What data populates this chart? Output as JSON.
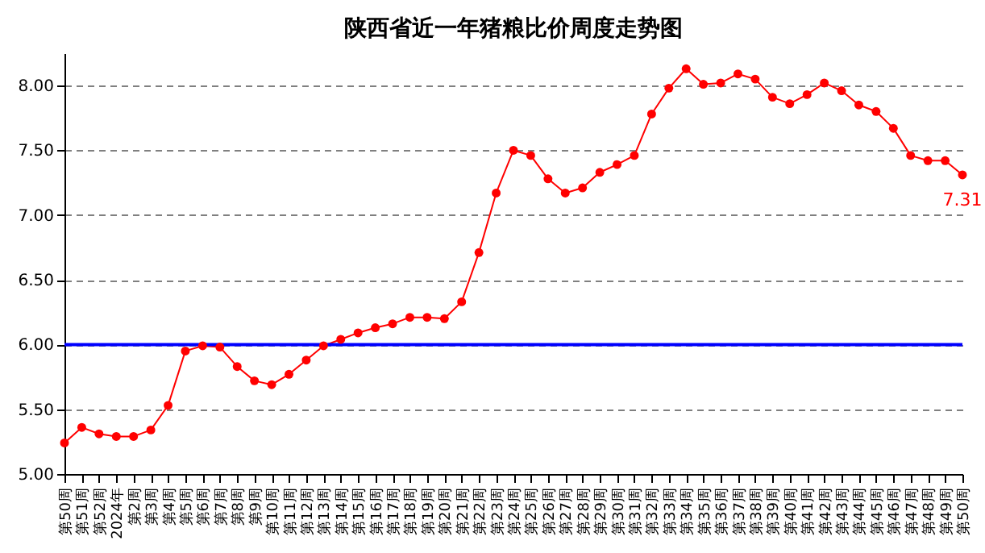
{
  "chart_data": {
    "type": "line",
    "title": "陕西省近一年猪粮比价周度走势图",
    "categories": [
      "第50周",
      "第51周",
      "第52周",
      "2024年",
      "第2周",
      "第3周",
      "第4周",
      "第5周",
      "第6周",
      "第7周",
      "第8周",
      "第9周",
      "第10周",
      "第11周",
      "第12周",
      "第13周",
      "第14周",
      "第15周",
      "第16周",
      "第17周",
      "第18周",
      "第19周",
      "第20周",
      "第21周",
      "第22周",
      "第23周",
      "第24周",
      "第25周",
      "第26周",
      "第27周",
      "第28周",
      "第29周",
      "第30周",
      "第31周",
      "第32周",
      "第33周",
      "第34周",
      "第35周",
      "第36周",
      "第37周",
      "第38周",
      "第39周",
      "第40周",
      "第41周",
      "第42周",
      "第43周",
      "第44周",
      "第45周",
      "第46周",
      "第47周",
      "第48周",
      "第49周",
      "第50周"
    ],
    "series": [
      {
        "color": "#ff0000",
        "values": [
          5.24,
          5.36,
          5.31,
          5.29,
          5.29,
          5.34,
          5.53,
          5.95,
          5.99,
          5.98,
          5.83,
          5.72,
          5.69,
          5.77,
          5.88,
          5.99,
          6.04,
          6.09,
          6.13,
          6.16,
          6.21,
          6.21,
          6.2,
          6.33,
          6.71,
          7.17,
          7.5,
          7.46,
          7.28,
          7.17,
          7.21,
          7.33,
          7.39,
          7.46,
          7.78,
          7.98,
          8.13,
          8.01,
          8.02,
          8.09,
          8.05,
          7.91,
          7.86,
          7.93,
          8.02,
          7.96,
          7.85,
          7.8,
          7.67,
          7.46,
          7.42,
          7.42,
          7.31
        ],
        "value_labels": [
          null,
          null,
          null,
          null,
          null,
          null,
          null,
          null,
          null,
          null,
          null,
          null,
          null,
          null,
          null,
          null,
          null,
          null,
          null,
          null,
          null,
          null,
          null,
          null,
          null,
          null,
          null,
          null,
          null,
          null,
          null,
          null,
          null,
          null,
          null,
          null,
          null,
          null,
          null,
          null,
          null,
          null,
          null,
          null,
          null,
          null,
          null,
          null,
          null,
          null,
          null,
          null,
          "7.31"
        ]
      }
    ],
    "ylim": [
      5,
      8.25
    ],
    "yticks": [
      {
        "value": 5,
        "label": "5.00"
      },
      {
        "value": 5.5,
        "label": "5.50"
      },
      {
        "value": 6,
        "label": "6.00"
      },
      {
        "value": 6.5,
        "label": "6.50"
      },
      {
        "value": 7,
        "label": "7.00"
      },
      {
        "value": 7.5,
        "label": "7.50"
      },
      {
        "value": 8,
        "label": "8.00"
      }
    ],
    "grid": "y",
    "marker": "circle",
    "line_style": "solid",
    "ref_lines": [
      {
        "axis": "y",
        "value": 6,
        "color": "#0000ff"
      }
    ]
  }
}
